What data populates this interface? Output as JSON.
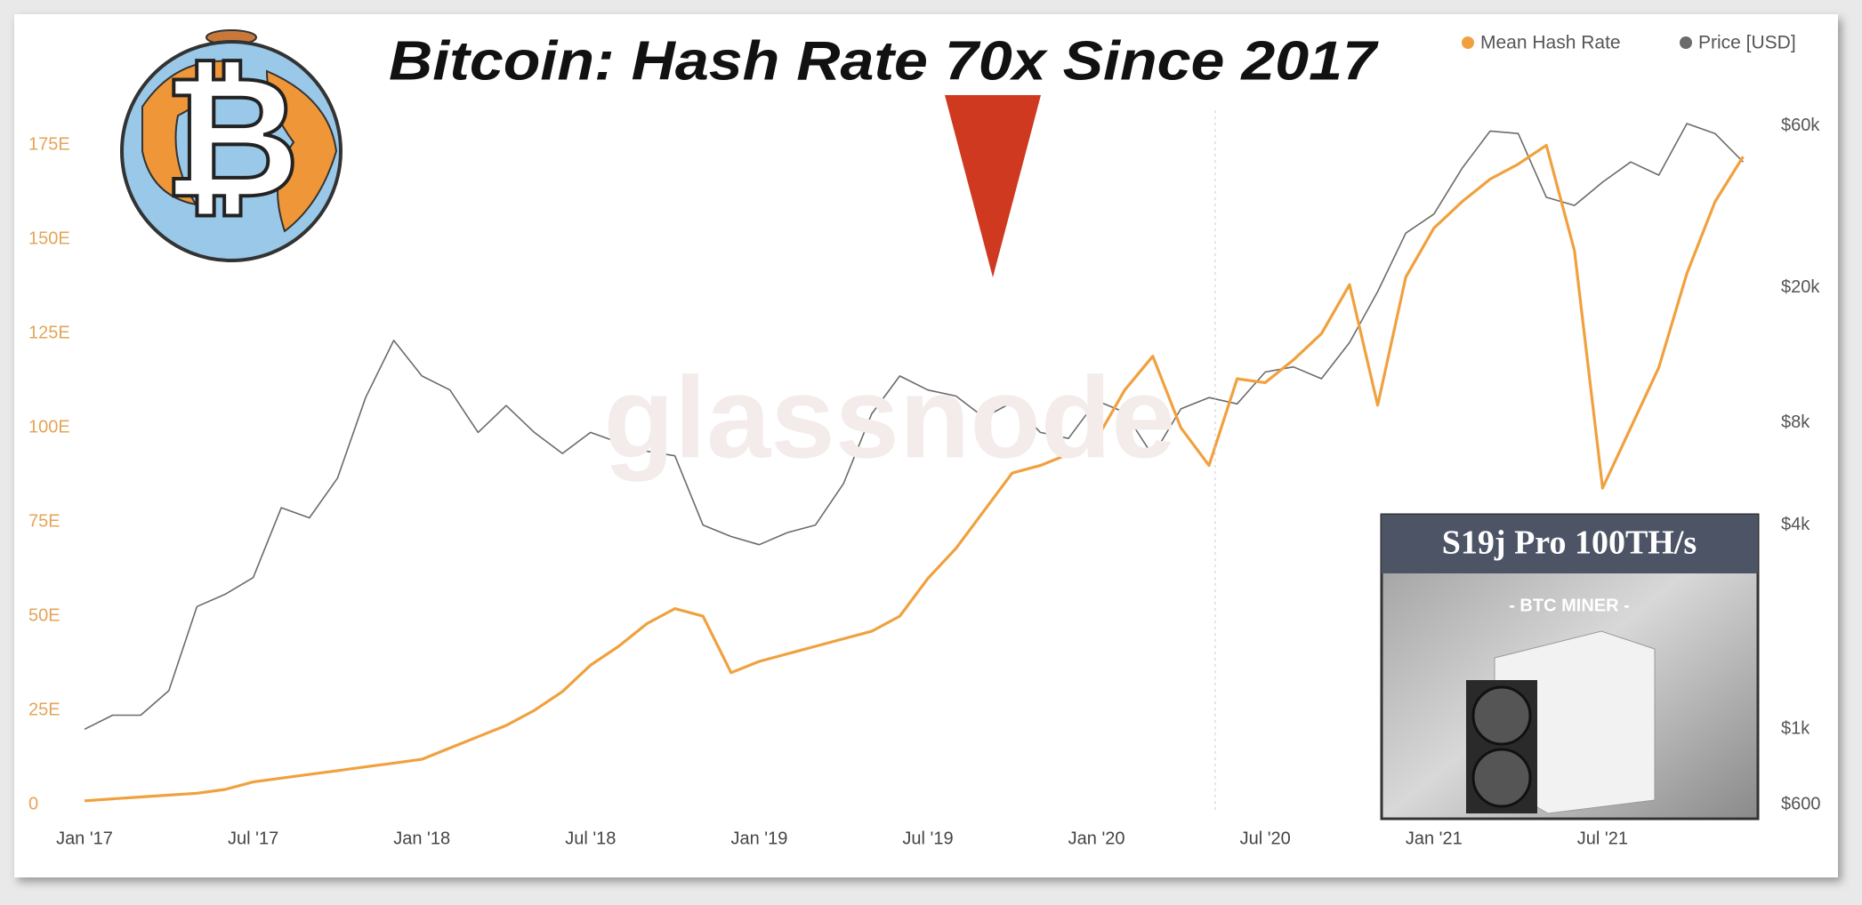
{
  "chart_data": {
    "type": "line",
    "title": "Bitcoin: Hash Rate 70x Since 2017",
    "watermark": "glassnode",
    "categories": [
      "Jan '17",
      null,
      null,
      null,
      null,
      null,
      "Jul '17",
      null,
      null,
      null,
      null,
      null,
      "Jan '18",
      null,
      null,
      null,
      null,
      null,
      "Jul '18",
      null,
      null,
      null,
      null,
      null,
      "Jan '19",
      null,
      null,
      null,
      null,
      null,
      "Jul '19",
      null,
      null,
      null,
      null,
      null,
      "Jan '20",
      null,
      null,
      null,
      null,
      null,
      "Jul '20",
      null,
      null,
      null,
      null,
      null,
      "Jan '21",
      null,
      null,
      null,
      null,
      null,
      "Jul '21",
      null,
      null,
      null,
      null,
      null
    ],
    "series": [
      {
        "name": "Mean Hash Rate",
        "color": "#f0a13e",
        "axis": "y",
        "values": [
          1,
          1.5,
          2,
          2.5,
          3,
          4,
          6,
          7,
          8,
          9,
          10,
          11,
          12,
          15,
          18,
          21,
          25,
          30,
          37,
          42,
          48,
          52,
          50,
          35,
          38,
          40,
          42,
          44,
          46,
          50,
          60,
          68,
          78,
          88,
          90,
          93,
          97,
          110,
          119,
          100,
          90,
          113,
          112,
          118,
          125,
          138,
          106,
          140,
          153,
          160,
          166,
          170,
          175,
          147,
          84,
          100,
          116,
          141,
          160,
          172
        ]
      },
      {
        "name": "Price [USD]",
        "color": "#6b6b6b",
        "axis": "y2",
        "values": [
          1000,
          1100,
          1100,
          1300,
          2300,
          2500,
          2800,
          4500,
          4200,
          5500,
          9500,
          14000,
          11000,
          10000,
          7500,
          9000,
          7500,
          6500,
          7500,
          7000,
          6600,
          6400,
          4000,
          3700,
          3500,
          3800,
          4000,
          5300,
          8500,
          11000,
          10000,
          9600,
          8300,
          9200,
          7500,
          7200,
          9300,
          8600,
          6400,
          8800,
          9500,
          9100,
          11300,
          11700,
          10800,
          13800,
          19500,
          29000,
          33000,
          45000,
          58000,
          57000,
          37000,
          35000,
          41000,
          47000,
          43000,
          61000,
          57000,
          47000
        ]
      }
    ],
    "ylim": [
      0,
      185
    ],
    "yticks": [
      0,
      {
        "value": 25,
        "label": "25E"
      },
      {
        "value": 50,
        "label": "50E"
      },
      {
        "value": 75,
        "label": "75E"
      },
      {
        "value": 100,
        "label": "100E"
      },
      {
        "value": 125,
        "label": "125E"
      },
      {
        "value": 150,
        "label": "150E"
      },
      {
        "value": 175,
        "label": "175E"
      }
    ],
    "y2lim": [
      600,
      68000
    ],
    "y2scale": "log",
    "y2ticks": [
      {
        "value": 600,
        "label": "$600"
      },
      {
        "value": 1000,
        "label": "$1k"
      },
      {
        "value": 4000,
        "label": "$4k"
      },
      {
        "value": 8000,
        "label": "$8k"
      },
      {
        "value": 20000,
        "label": "$20k"
      },
      {
        "value": 60000,
        "label": "$60k"
      }
    ],
    "grid": false,
    "legend": "top-right"
  },
  "logo": "₿",
  "inset": {
    "title": "S19j  Pro 100TH/s",
    "subtitle": "- BTC MINER -"
  }
}
